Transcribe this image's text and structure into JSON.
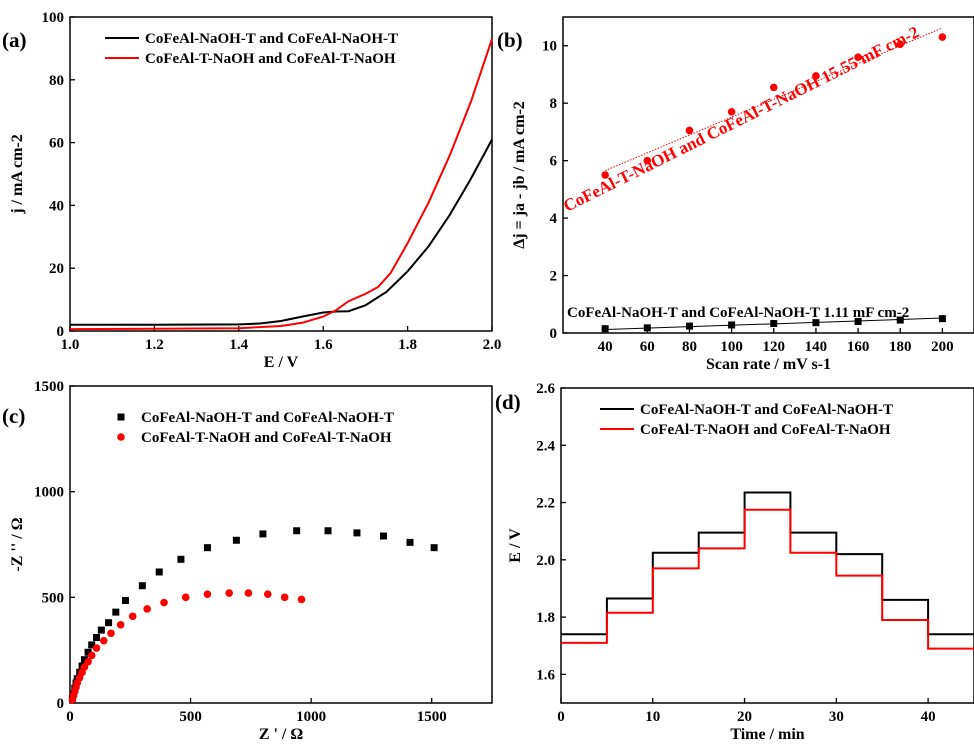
{
  "colors": {
    "black": "#000000",
    "red": "#ff0000"
  },
  "panels": [
    {
      "label": "(a)"
    },
    {
      "label": "(b)"
    },
    {
      "label": "(c)"
    },
    {
      "label": "(d)"
    }
  ],
  "chart_data": [
    {
      "panel": "(a)",
      "type": "line",
      "xlabel": "E / V",
      "ylabel": "j / mA cm-2",
      "xlim": [
        1.0,
        2.0
      ],
      "ylim": [
        0,
        100
      ],
      "xticks": [
        "1.0",
        "1.2",
        "1.4",
        "1.6",
        "1.8",
        "2.0"
      ],
      "yticks": [
        "0",
        "20",
        "40",
        "60",
        "80",
        "100"
      ],
      "legend": {
        "position": "top-right",
        "entries": [
          "CoFeAl-NaOH-T and CoFeAl-NaOH-T",
          "CoFeAl-T-NaOH and CoFeAl-T-NaOH"
        ]
      },
      "series": [
        {
          "name": "CoFeAl-NaOH-T and CoFeAl-NaOH-T",
          "color": "black",
          "x": [
            1.0,
            1.2,
            1.4,
            1.45,
            1.5,
            1.55,
            1.6,
            1.63,
            1.66,
            1.7,
            1.75,
            1.8,
            1.85,
            1.9,
            1.95,
            2.0
          ],
          "y": [
            2.0,
            2.0,
            2.1,
            2.4,
            3.2,
            4.6,
            5.9,
            6.2,
            6.3,
            8.2,
            12.5,
            19.0,
            27.0,
            37.0,
            48.5,
            61.0
          ]
        },
        {
          "name": "CoFeAl-T-NaOH and CoFeAl-T-NaOH",
          "color": "red",
          "x": [
            1.0,
            1.2,
            1.4,
            1.5,
            1.55,
            1.6,
            1.63,
            1.66,
            1.7,
            1.73,
            1.76,
            1.8,
            1.85,
            1.9,
            1.95,
            2.0
          ],
          "y": [
            0.6,
            0.7,
            0.9,
            1.6,
            2.6,
            4.6,
            6.6,
            9.5,
            11.8,
            14.0,
            18.5,
            28.0,
            41.0,
            56.0,
            73.0,
            93.0
          ]
        }
      ]
    },
    {
      "panel": "(b)",
      "type": "scatter",
      "xlabel": "Scan rate / mV s-1",
      "ylabel": "Δj = ja - jb / mA cm-2",
      "xlim": [
        20,
        215
      ],
      "ylim": [
        0,
        11
      ],
      "xticks": [
        "40",
        "60",
        "80",
        "100",
        "120",
        "140",
        "160",
        "180",
        "200"
      ],
      "yticks": [
        "0",
        "2",
        "4",
        "6",
        "8",
        "10"
      ],
      "annotations": [
        "CoFeAl-T-NaOH and CoFeAl-T-NaOH 15.55 mF cm-2",
        "CoFeAl-NaOH-T and CoFeAl-NaOH-T 1.11 mF cm-2"
      ],
      "series": [
        {
          "name": "CoFeAl-T-NaOH and CoFeAl-T-NaOH",
          "color": "red",
          "marker": "circle",
          "x": [
            40,
            60,
            80,
            100,
            120,
            140,
            160,
            180,
            200
          ],
          "y": [
            5.5,
            6.0,
            7.05,
            7.7,
            8.55,
            8.95,
            9.6,
            10.05,
            10.3
          ],
          "fit": {
            "x": [
              40,
              200
            ],
            "y": [
              5.65,
              10.62
            ]
          }
        },
        {
          "name": "CoFeAl-NaOH-T and CoFeAl-NaOH-T",
          "color": "black",
          "marker": "square",
          "x": [
            40,
            60,
            80,
            100,
            120,
            140,
            160,
            180,
            200
          ],
          "y": [
            0.15,
            0.18,
            0.24,
            0.28,
            0.33,
            0.36,
            0.4,
            0.45,
            0.5
          ],
          "fit": {
            "x": [
              40,
              200
            ],
            "y": [
              0.12,
              0.52
            ]
          }
        }
      ]
    },
    {
      "panel": "(c)",
      "type": "scatter",
      "xlabel": "Z ' / Ω",
      "ylabel": "-Z '' / Ω",
      "xlim": [
        0,
        1750
      ],
      "ylim": [
        0,
        1500
      ],
      "xticks": [
        "0",
        "500",
        "1000",
        "1500"
      ],
      "yticks": [
        "0",
        "500",
        "1000",
        "1500"
      ],
      "legend": {
        "position": "top-left",
        "entries": [
          "CoFeAl-NaOH-T and CoFeAl-NaOH-T",
          "CoFeAl-T-NaOH and CoFeAl-T-NaOH"
        ]
      },
      "series": [
        {
          "name": "CoFeAl-NaOH-T and CoFeAl-NaOH-T",
          "color": "black",
          "marker": "square",
          "x": [
            10,
            15,
            20,
            25,
            30,
            40,
            50,
            60,
            75,
            90,
            110,
            130,
            160,
            190,
            230,
            300,
            370,
            460,
            570,
            690,
            800,
            940,
            1070,
            1190,
            1300,
            1410,
            1510
          ],
          "y": [
            20,
            45,
            70,
            95,
            115,
            145,
            175,
            205,
            240,
            275,
            310,
            345,
            380,
            430,
            485,
            555,
            620,
            680,
            735,
            770,
            800,
            815,
            815,
            805,
            790,
            760,
            735
          ]
        },
        {
          "name": "CoFeAl-T-NaOH and CoFeAl-T-NaOH",
          "color": "red",
          "marker": "circle",
          "x": [
            10,
            15,
            20,
            25,
            30,
            40,
            50,
            60,
            75,
            90,
            110,
            140,
            170,
            210,
            260,
            320,
            390,
            480,
            570,
            660,
            740,
            820,
            890,
            960
          ],
          "y": [
            15,
            35,
            55,
            75,
            95,
            120,
            145,
            170,
            195,
            225,
            260,
            295,
            330,
            370,
            410,
            445,
            475,
            500,
            515,
            520,
            520,
            515,
            500,
            490
          ]
        }
      ]
    },
    {
      "panel": "(d)",
      "type": "line",
      "xlabel": "Time / min",
      "ylabel": "E / V",
      "xlim": [
        0,
        45
      ],
      "ylim": [
        1.5,
        2.6
      ],
      "xticks": [
        "0",
        "10",
        "20",
        "30",
        "40"
      ],
      "yticks": [
        "1.6",
        "1.8",
        "2.0",
        "2.2",
        "2.4",
        "2.6"
      ],
      "legend": {
        "position": "top-left",
        "entries": [
          "CoFeAl-NaOH-T and CoFeAl-NaOH-T",
          "CoFeAl-T-NaOH and CoFeAl-T-NaOH"
        ]
      },
      "series": [
        {
          "name": "CoFeAl-NaOH-T and CoFeAl-NaOH-T",
          "color": "black",
          "steps": [
            [
              0,
              5,
              1.74
            ],
            [
              5,
              10,
              1.865
            ],
            [
              10,
              15,
              2.025
            ],
            [
              15,
              20,
              2.095
            ],
            [
              20,
              25,
              2.235
            ],
            [
              25,
              30,
              2.095
            ],
            [
              30,
              35,
              2.02
            ],
            [
              35,
              40,
              1.86
            ],
            [
              40,
              45,
              1.74
            ]
          ]
        },
        {
          "name": "CoFeAl-T-NaOH and CoFeAl-T-NaOH",
          "color": "red",
          "steps": [
            [
              0,
              5,
              1.71
            ],
            [
              5,
              10,
              1.815
            ],
            [
              10,
              15,
              1.97
            ],
            [
              15,
              20,
              2.04
            ],
            [
              20,
              25,
              2.175
            ],
            [
              25,
              30,
              2.025
            ],
            [
              30,
              35,
              1.945
            ],
            [
              35,
              40,
              1.79
            ],
            [
              40,
              45,
              1.69
            ]
          ]
        }
      ]
    }
  ]
}
